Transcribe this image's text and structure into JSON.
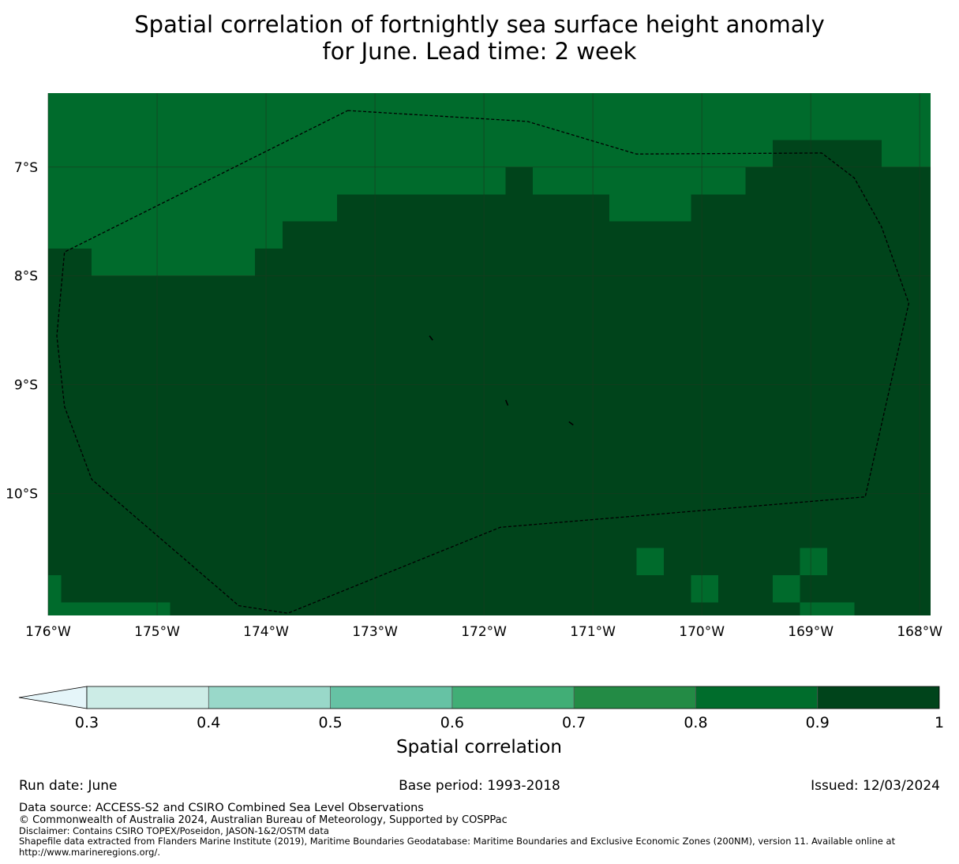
{
  "title": {
    "line1": "Spatial correlation of fortnightly sea surface height anomaly",
    "line2": "for June. Lead time: 2 week"
  },
  "map": {
    "lon_range": [
      -176.0,
      -167.9
    ],
    "lat_range": [
      -11.12,
      -6.32
    ],
    "x_ticks": [
      {
        "value": -176,
        "label": "176°W"
      },
      {
        "value": -175,
        "label": "175°W"
      },
      {
        "value": -174,
        "label": "174°W"
      },
      {
        "value": -173,
        "label": "173°W"
      },
      {
        "value": -172,
        "label": "172°W"
      },
      {
        "value": -171,
        "label": "171°W"
      },
      {
        "value": -170,
        "label": "170°W"
      },
      {
        "value": -169,
        "label": "169°W"
      },
      {
        "value": -168,
        "label": "168°W"
      }
    ],
    "y_ticks": [
      {
        "value": -7,
        "label": "7°S"
      },
      {
        "value": -8,
        "label": "8°S"
      },
      {
        "value": -9,
        "label": "9°S"
      },
      {
        "value": -10,
        "label": "10°S"
      }
    ],
    "grid": true,
    "grid_color": "#1a3a1f",
    "background_class_color": "#006b2c",
    "dark_class_color": "#00441b",
    "high_class_cells": [
      {
        "lon": [
          -169.35,
          -168.35
        ],
        "lat": [
          -7.0,
          -6.75
        ]
      },
      {
        "lon": [
          -169.6,
          -167.9
        ],
        "lat": [
          -8.0,
          -7.0
        ]
      },
      {
        "lon": [
          -171.8,
          -171.55
        ],
        "lat": [
          -7.25,
          -7.0
        ]
      },
      {
        "lon": [
          -173.35,
          -171.8
        ],
        "lat": [
          -7.5,
          -7.25
        ]
      },
      {
        "lon": [
          -171.8,
          -170.85
        ],
        "lat": [
          -7.5,
          -7.25
        ]
      },
      {
        "lon": [
          -170.1,
          -169.6
        ],
        "lat": [
          -7.5,
          -7.25
        ]
      },
      {
        "lon": [
          -173.85,
          -169.6
        ],
        "lat": [
          -7.75,
          -7.5
        ]
      },
      {
        "lon": [
          -174.1,
          -169.6
        ],
        "lat": [
          -8.0,
          -7.75
        ]
      },
      {
        "lon": [
          -176.0,
          -175.6
        ],
        "lat": [
          -8.0,
          -7.75
        ]
      },
      {
        "lon": [
          -176.0,
          -167.9
        ],
        "lat": [
          -10.5,
          -8.0
        ]
      },
      {
        "lon": [
          -176.0,
          -170.6
        ],
        "lat": [
          -10.75,
          -10.5
        ]
      },
      {
        "lon": [
          -170.35,
          -169.1
        ],
        "lat": [
          -10.75,
          -10.5
        ]
      },
      {
        "lon": [
          -168.85,
          -167.9
        ],
        "lat": [
          -10.75,
          -10.5
        ]
      },
      {
        "lon": [
          -175.88,
          -170.1
        ],
        "lat": [
          -11.0,
          -10.75
        ]
      },
      {
        "lon": [
          -169.85,
          -169.35
        ],
        "lat": [
          -11.0,
          -10.75
        ]
      },
      {
        "lon": [
          -169.1,
          -167.9
        ],
        "lat": [
          -11.0,
          -10.75
        ]
      },
      {
        "lon": [
          -174.88,
          -169.1
        ],
        "lat": [
          -11.12,
          -11.0
        ]
      },
      {
        "lon": [
          -174.6,
          -174.88
        ],
        "lat": [
          -11.12,
          -11.0
        ]
      },
      {
        "lon": [
          -168.6,
          -168.35
        ],
        "lat": [
          -11.12,
          -11.0
        ]
      },
      {
        "lon": [
          -168.35,
          -167.9
        ],
        "lat": [
          -11.12,
          -11.0
        ]
      }
    ],
    "eez_boundary": [
      [
        -173.25,
        -6.48
      ],
      [
        -171.6,
        -6.58
      ],
      [
        -170.6,
        -6.88
      ],
      [
        -168.9,
        -6.87
      ],
      [
        -168.6,
        -7.1
      ],
      [
        -168.35,
        -7.55
      ],
      [
        -168.1,
        -8.25
      ],
      [
        -168.5,
        -10.03
      ],
      [
        -171.85,
        -10.31
      ],
      [
        -173.8,
        -11.1
      ],
      [
        -174.25,
        -11.03
      ],
      [
        -175.6,
        -9.87
      ],
      [
        -175.85,
        -9.2
      ],
      [
        -175.92,
        -8.55
      ],
      [
        -175.85,
        -7.78
      ],
      [
        -173.25,
        -6.48
      ]
    ],
    "islands": [
      {
        "path": [
          [
            -172.5,
            -8.55
          ],
          [
            -172.47,
            -8.59
          ]
        ]
      },
      {
        "path": [
          [
            -171.8,
            -9.14
          ],
          [
            -171.78,
            -9.19
          ]
        ]
      },
      {
        "path": [
          [
            -171.22,
            -9.34
          ],
          [
            -171.18,
            -9.37
          ]
        ]
      }
    ]
  },
  "colorbar": {
    "title": "Spatial correlation",
    "ticks": [
      "0.3",
      "0.4",
      "0.5",
      "0.6",
      "0.7",
      "0.8",
      "0.9",
      "1"
    ],
    "bins": [
      {
        "from": 0.3,
        "to": 0.4,
        "color": "#ccece6"
      },
      {
        "from": 0.4,
        "to": 0.5,
        "color": "#99d8c9"
      },
      {
        "from": 0.5,
        "to": 0.6,
        "color": "#66c2a4"
      },
      {
        "from": 0.6,
        "to": 0.7,
        "color": "#41ae76"
      },
      {
        "from": 0.7,
        "to": 0.8,
        "color": "#238b45"
      },
      {
        "from": 0.8,
        "to": 0.9,
        "color": "#006d2c"
      },
      {
        "from": 0.9,
        "to": 1.0,
        "color": "#00441b"
      }
    ],
    "extend_color": "#e5f5f9"
  },
  "footer": {
    "run_date": "Run date: June",
    "base_period": "Base period: 1993-2018",
    "issued": "Issued: 12/03/2024",
    "data_source": "Data source: ACCESS-S2 and CSIRO Combined Sea Level Observations",
    "copyright": "© Commonwealth of Australia 2024, Australian Bureau of Meteorology, Supported by COSPPac",
    "disclaimer": "Disclaimer: Contains CSIRO TOPEX/Poseidon, JASON-1&2/OSTM data",
    "shapefile": "Shapefile data extracted from Flanders Marine Institute (2019), Maritime Boundaries Geodatabase: Maritime Boundaries and Exclusive Economic Zones (200NM), version 11. Available online at http://www.marineregions.org/."
  }
}
